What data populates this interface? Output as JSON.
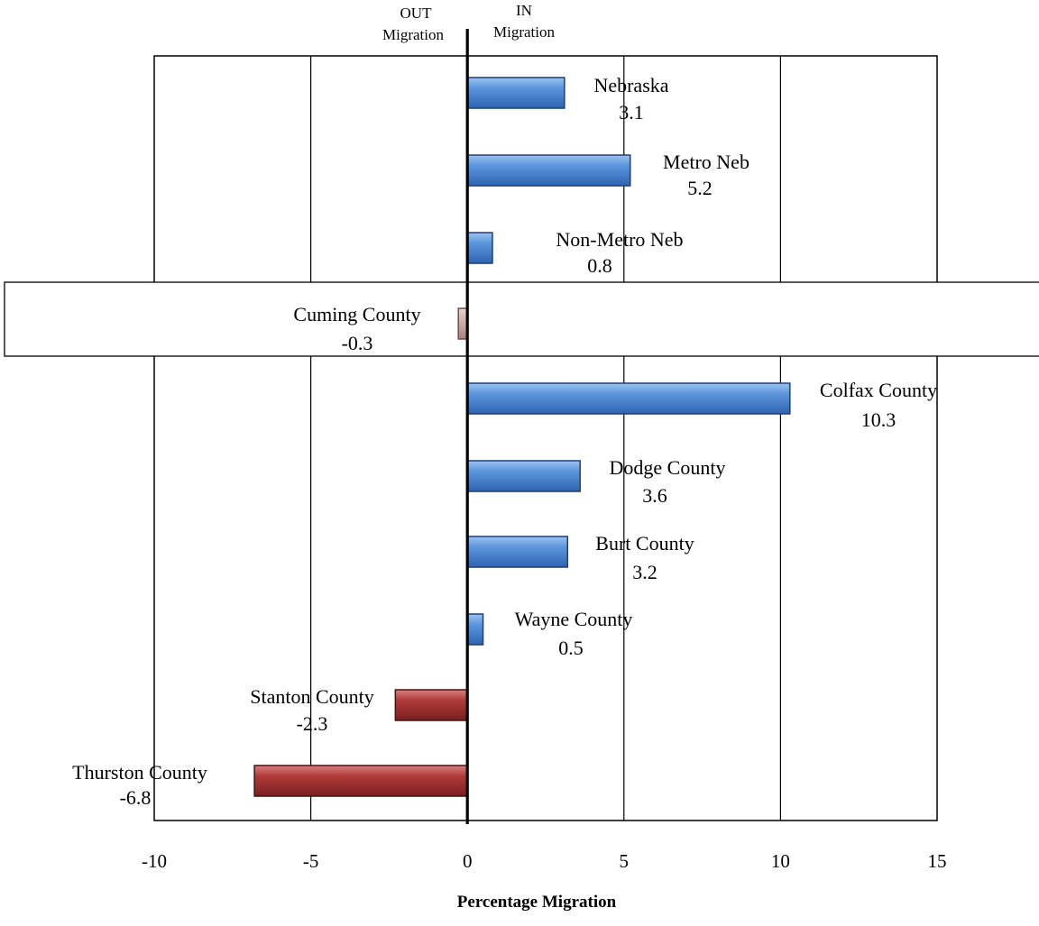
{
  "chart_data": {
    "type": "bar",
    "orientation": "horizontal",
    "categories": [
      "Nebraska",
      "Metro Neb",
      "Non-Metro Neb",
      "Cuming County",
      "Colfax County",
      "Dodge County",
      "Burt County",
      "Wayne County",
      "Stanton County",
      "Thurston County"
    ],
    "values": [
      3.1,
      5.2,
      0.8,
      -0.3,
      10.3,
      3.6,
      3.2,
      0.5,
      -2.3,
      -6.8
    ],
    "value_labels": [
      "3.1",
      "5.2",
      "0.8",
      "-0.3",
      "10.3",
      "3.6",
      "3.2",
      "0.5",
      "-2.3",
      "-6.8"
    ],
    "highlighted_category": "Cuming County",
    "xlim": [
      -10,
      15
    ],
    "xticks": [
      -10,
      -5,
      0,
      5,
      10,
      15
    ],
    "xtick_labels": [
      "-10",
      "-5",
      "0",
      "5",
      "10",
      "15"
    ],
    "xlabel": "Percentage Migration",
    "grid": "vertical",
    "direction_labels": {
      "out_line1": "OUT",
      "out_line2": "Migration",
      "in_line1": "IN",
      "in_line2": "Migration"
    },
    "colors": {
      "positive": "#4a86d4",
      "negative": "#b03a3a",
      "small_negative": "#c9a6a1",
      "axis": "#000000",
      "grid": "#000000"
    }
  }
}
